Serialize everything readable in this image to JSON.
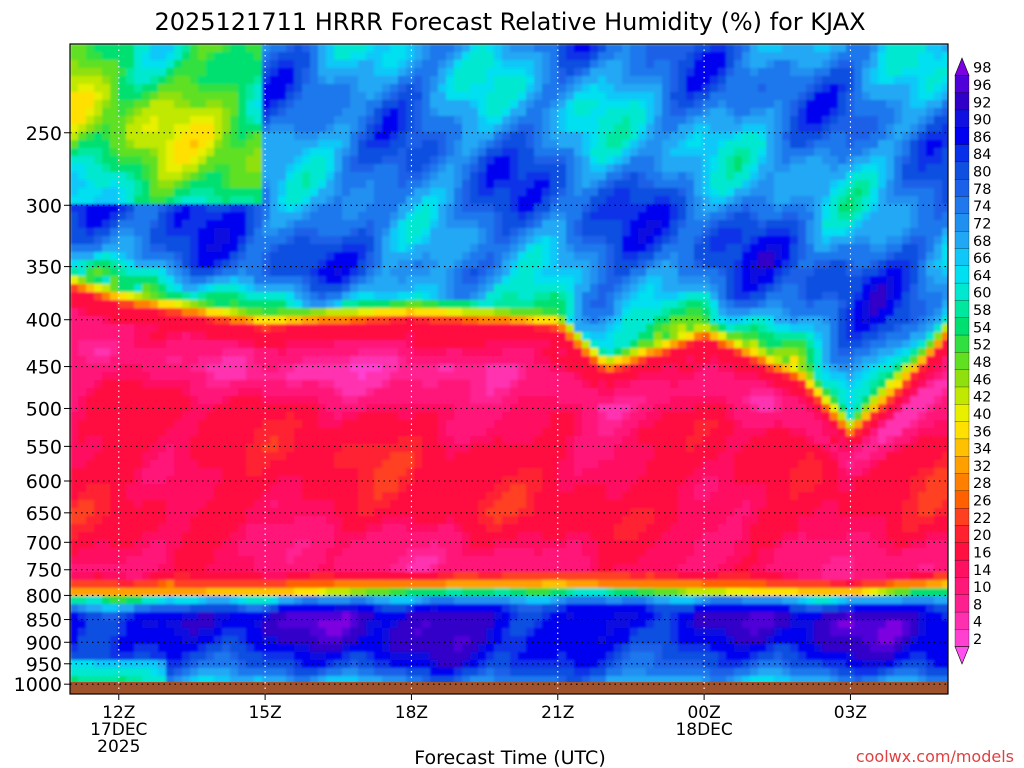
{
  "chart_data": {
    "type": "heatmap",
    "title": "2025121711 HRRR Forecast Relative Humidity (%) for KJAX",
    "xlabel": "Forecast Time (UTC)",
    "ylabel": "",
    "watermark": "coolwx.com/models",
    "x_ticks": [
      {
        "hour": 12,
        "lines": [
          "12Z",
          "17DEC",
          "2025"
        ]
      },
      {
        "hour": 15,
        "lines": [
          "15Z"
        ]
      },
      {
        "hour": 18,
        "lines": [
          "18Z"
        ]
      },
      {
        "hour": 21,
        "lines": [
          "21Z"
        ]
      },
      {
        "hour": 24,
        "lines": [
          "00Z",
          "18DEC"
        ]
      },
      {
        "hour": 27,
        "lines": [
          "03Z"
        ]
      }
    ],
    "xlim": [
      11,
      29
    ],
    "ylim": [
      200,
      1025
    ],
    "y_scale": "log",
    "y_ticks": [
      250,
      300,
      350,
      400,
      450,
      500,
      550,
      600,
      650,
      700,
      750,
      800,
      850,
      900,
      950,
      1000
    ],
    "grid": true,
    "colorbar": {
      "labels": [
        98,
        96,
        92,
        90,
        86,
        84,
        80,
        78,
        74,
        72,
        68,
        66,
        64,
        60,
        58,
        54,
        52,
        48,
        46,
        42,
        40,
        36,
        34,
        32,
        28,
        26,
        22,
        20,
        16,
        14,
        10,
        8,
        4,
        2
      ],
      "colors": [
        "#7d00e0",
        "#5000d8",
        "#3000c8",
        "#1010e0",
        "#0000f0",
        "#0830e8",
        "#1050e0",
        "#1a60e8",
        "#1f78ec",
        "#2090f0",
        "#20a8f4",
        "#10c8f8",
        "#00e0f0",
        "#00e8d0",
        "#00e8a0",
        "#00e070",
        "#30e040",
        "#60e020",
        "#90e010",
        "#c0e800",
        "#e8f000",
        "#ffe000",
        "#ffc000",
        "#ffa000",
        "#ff8000",
        "#ff6000",
        "#ff4020",
        "#ff2030",
        "#ff1040",
        "#ff1060",
        "#ff1878",
        "#ff2090",
        "#ff30b0",
        "#ff40d0",
        "#ff50f0"
      ]
    },
    "rh_profile": [
      {
        "p": 200,
        "rh": 74
      },
      {
        "p": 250,
        "rh": 72
      },
      {
        "p": 300,
        "rh": 78
      },
      {
        "p": 350,
        "rh": 76
      },
      {
        "p": 380,
        "rh": 60
      },
      {
        "p": 400,
        "rh": 20
      },
      {
        "p": 450,
        "rh": 8
      },
      {
        "p": 500,
        "rh": 16
      },
      {
        "p": 550,
        "rh": 18
      },
      {
        "p": 600,
        "rh": 18
      },
      {
        "p": 650,
        "rh": 18
      },
      {
        "p": 700,
        "rh": 14
      },
      {
        "p": 750,
        "rh": 12
      },
      {
        "p": 790,
        "rh": 36
      },
      {
        "p": 800,
        "rh": 60
      },
      {
        "p": 830,
        "rh": 88
      },
      {
        "p": 850,
        "rh": 92
      },
      {
        "p": 900,
        "rh": 90
      },
      {
        "p": 950,
        "rh": 84
      },
      {
        "p": 980,
        "rh": 76
      },
      {
        "p": 1000,
        "rh": 70
      }
    ],
    "dry_layer_top_hPa": [
      {
        "hour": 11,
        "p": 370
      },
      {
        "hour": 12,
        "p": 385
      },
      {
        "hour": 15,
        "p": 410
      },
      {
        "hour": 18,
        "p": 400
      },
      {
        "hour": 21,
        "p": 410
      },
      {
        "hour": 22,
        "p": 460
      },
      {
        "hour": 24,
        "p": 420
      },
      {
        "hour": 26,
        "p": 470
      },
      {
        "hour": 27,
        "p": 540
      },
      {
        "hour": 28,
        "p": 480
      },
      {
        "hour": 29,
        "p": 420
      }
    ],
    "dry_layer_bottom_hPa": [
      {
        "hour": 11,
        "p": 800
      },
      {
        "hour": 15,
        "p": 795
      },
      {
        "hour": 18,
        "p": 785
      },
      {
        "hour": 21,
        "p": 780
      },
      {
        "hour": 24,
        "p": 790
      },
      {
        "hour": 27,
        "p": 795
      },
      {
        "hour": 29,
        "p": 780
      }
    ],
    "surface_color": "#a0522d"
  }
}
